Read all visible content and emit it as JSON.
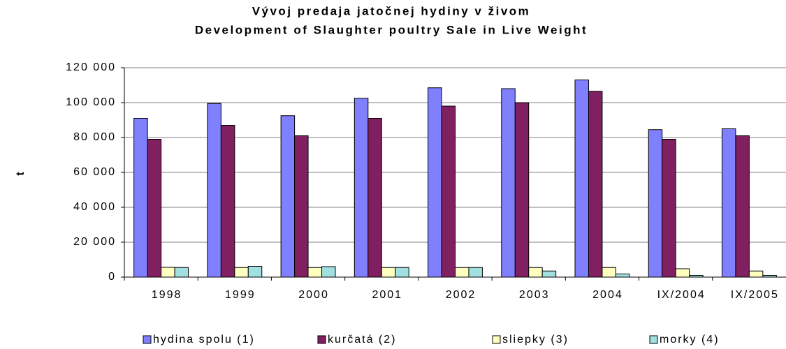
{
  "chart_data": {
    "type": "bar",
    "title": "Vývoj predaja jatočnej hydiny v živom",
    "subtitle": "Development of Slaughter poultry Sale in Live Weight",
    "y_label": "t",
    "categories": [
      "1998",
      "1999",
      "2000",
      "2001",
      "2002",
      "2003",
      "2004",
      "IX/2004",
      "IX/2005"
    ],
    "series": [
      {
        "name": "hydina spolu (1)",
        "color": "#8080ff",
        "values": [
          91000,
          99500,
          92500,
          102500,
          108500,
          108000,
          113000,
          84500,
          85000
        ]
      },
      {
        "name": "kurčatá (2)",
        "color": "#802060",
        "values": [
          79000,
          87000,
          81000,
          91000,
          98000,
          100000,
          106500,
          79000,
          81000
        ]
      },
      {
        "name": "sliepky (3)",
        "color": "#ffffc0",
        "values": [
          5600,
          5500,
          5500,
          5500,
          5500,
          5500,
          5500,
          4800,
          3500
        ]
      },
      {
        "name": "morky (4)",
        "color": "#a0e0e0",
        "values": [
          5500,
          6200,
          6000,
          5500,
          5500,
          3500,
          1800,
          1000,
          1000
        ]
      }
    ],
    "ylim": [
      0,
      120000
    ],
    "yticks": [
      0,
      {
        "value": 20000,
        "label": "20 000"
      },
      {
        "value": 40000,
        "label": "40 000"
      },
      {
        "value": 60000,
        "label": "60 000"
      },
      {
        "value": 80000,
        "label": "80 000"
      },
      {
        "value": 100000,
        "label": "100 000"
      },
      {
        "value": 120000,
        "label": "120 000"
      }
    ],
    "legend": "bottom"
  }
}
